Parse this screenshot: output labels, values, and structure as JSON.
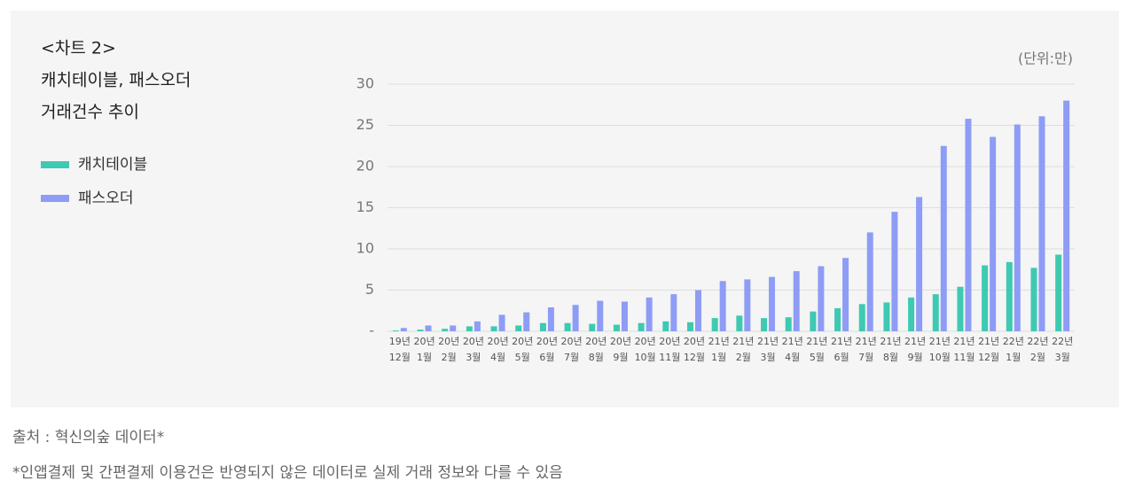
{
  "chart_data": {
    "type": "bar",
    "title": [
      "<차트 2>",
      "캐치테이블, 패스오더",
      "거래건수 추이"
    ],
    "unit": "(단위:만)",
    "categories": [
      [
        "19년",
        "12월"
      ],
      [
        "20년",
        "1월"
      ],
      [
        "20년",
        "2월"
      ],
      [
        "20년",
        "3월"
      ],
      [
        "20년",
        "4월"
      ],
      [
        "20년",
        "5월"
      ],
      [
        "20년",
        "6월"
      ],
      [
        "20년",
        "7월"
      ],
      [
        "20년",
        "8월"
      ],
      [
        "20년",
        "9월"
      ],
      [
        "20년",
        "10월"
      ],
      [
        "20년",
        "11월"
      ],
      [
        "20년",
        "12월"
      ],
      [
        "21년",
        "1월"
      ],
      [
        "21년",
        "2월"
      ],
      [
        "21년",
        "3월"
      ],
      [
        "21년",
        "4월"
      ],
      [
        "21년",
        "5월"
      ],
      [
        "21년",
        "6월"
      ],
      [
        "21년",
        "7월"
      ],
      [
        "21년",
        "8월"
      ],
      [
        "21년",
        "9월"
      ],
      [
        "21년",
        "10월"
      ],
      [
        "21년",
        "11월"
      ],
      [
        "21년",
        "12월"
      ],
      [
        "22년",
        "1월"
      ],
      [
        "22년",
        "2월"
      ],
      [
        "22년",
        "3월"
      ]
    ],
    "series": [
      {
        "name": "캐치테이블",
        "color": "#3ec9b2",
        "values": [
          0.1,
          0.2,
          0.3,
          0.6,
          0.6,
          0.7,
          1.0,
          1.0,
          0.9,
          0.8,
          1.0,
          1.2,
          1.1,
          1.6,
          1.9,
          1.6,
          1.7,
          2.4,
          2.8,
          3.3,
          3.5,
          4.1,
          4.5,
          5.4,
          8.0,
          8.4,
          7.7,
          9.3
        ]
      },
      {
        "name": "패스오더",
        "color": "#8e9cf6",
        "values": [
          0.4,
          0.7,
          0.7,
          1.2,
          2.0,
          2.3,
          2.9,
          3.2,
          3.7,
          3.6,
          4.1,
          4.5,
          5.0,
          6.1,
          6.3,
          6.6,
          7.3,
          7.9,
          8.9,
          12.0,
          14.5,
          16.3,
          22.5,
          25.8,
          23.6,
          25.1,
          26.1,
          28.0
        ]
      }
    ],
    "ylim": [
      0,
      30
    ],
    "yticks": [
      {
        "value": 0,
        "label": "-"
      },
      5,
      10,
      15,
      20,
      25,
      30
    ],
    "grid": true,
    "source": "출처 : 혁신의숲 데이터*",
    "note": "*인앱결제 및 간편결제 이용건은 반영되지 않은 데이터로 실제 거래 정보와 다를 수 있음"
  }
}
